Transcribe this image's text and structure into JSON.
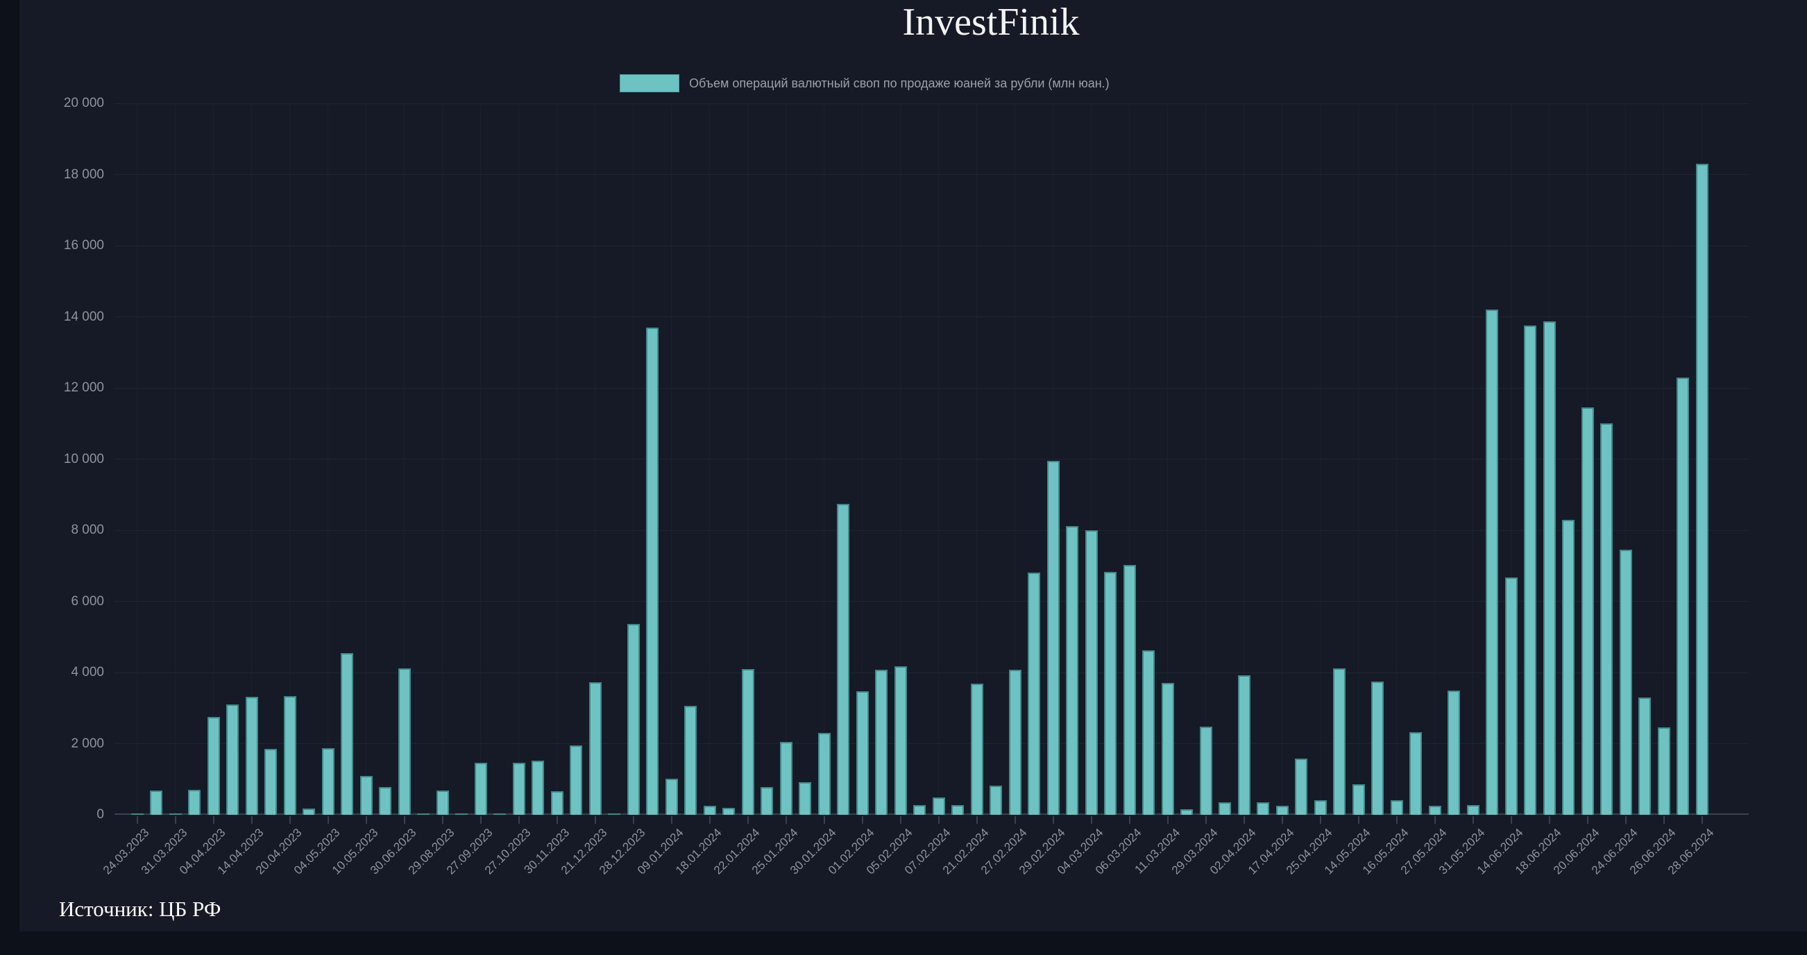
{
  "page": {
    "title": "InvestFinik",
    "source": "Источник: ЦБ РФ"
  },
  "chart_data": {
    "type": "bar",
    "title": "InvestFinik",
    "legend": [
      "Объем операций валютный своп по продаже юаней за рубли (млн юан.)"
    ],
    "legend_position": "top",
    "grid": true,
    "ylim": [
      0,
      20000
    ],
    "ytick_step": 2000,
    "ytick_labels": [
      "0",
      "2 000",
      "4 000",
      "6 000",
      "8 000",
      "10 000",
      "12 000",
      "14 000",
      "16 000",
      "18 000",
      "20 000"
    ],
    "bar_color": "#6ec2c2",
    "bar_border_color": "#43898a",
    "x_tick_label_every": 2,
    "x_tick_labels": [
      "24.03.2023",
      "31.03.2023",
      "04.04.2023",
      "14.04.2023",
      "20.04.2023",
      "04.05.2023",
      "10.05.2023",
      "30.06.2023",
      "29.08.2023",
      "27.09.2023",
      "27.10.2023",
      "30.11.2023",
      "21.12.2023",
      "28.12.2023",
      "09.01.2024",
      "18.01.2024",
      "22.01.2024",
      "25.01.2024",
      "30.01.2024",
      "01.02.2024",
      "05.02.2024",
      "07.02.2024",
      "21.02.2024",
      "27.02.2024",
      "29.02.2024",
      "04.03.2024",
      "06.03.2024",
      "11.03.2024",
      "29.03.2024",
      "02.04.2024",
      "17.04.2024",
      "25.04.2024",
      "14.05.2024",
      "16.05.2024",
      "27.05.2024",
      "31.05.2024",
      "14.06.2024",
      "18.06.2024",
      "20.06.2024",
      "24.06.2024",
      "26.06.2024",
      "28.06.2024"
    ],
    "values": [
      25,
      675,
      15,
      695,
      2750,
      3100,
      3320,
      1860,
      3340,
      180,
      1880,
      4550,
      1100,
      780,
      4120,
      15,
      680,
      20,
      1470,
      25,
      1460,
      1530,
      660,
      1950,
      3720,
      10,
      5370,
      13700,
      1020,
      3070,
      250,
      195,
      4090,
      790,
      2050,
      910,
      2300,
      8750,
      3470,
      4080,
      4180,
      275,
      490,
      275,
      3680,
      810,
      4080,
      6800,
      9960,
      8120,
      8000,
      6820,
      7030,
      4620,
      3700,
      155,
      2470,
      350,
      3920,
      350,
      255,
      1580,
      415,
      4120,
      855,
      3750,
      415,
      2330,
      255,
      3500,
      275,
      14200,
      6670,
      13750,
      13870,
      8290,
      11450,
      11000,
      7450,
      3290,
      2450,
      12300,
      18300
    ]
  }
}
